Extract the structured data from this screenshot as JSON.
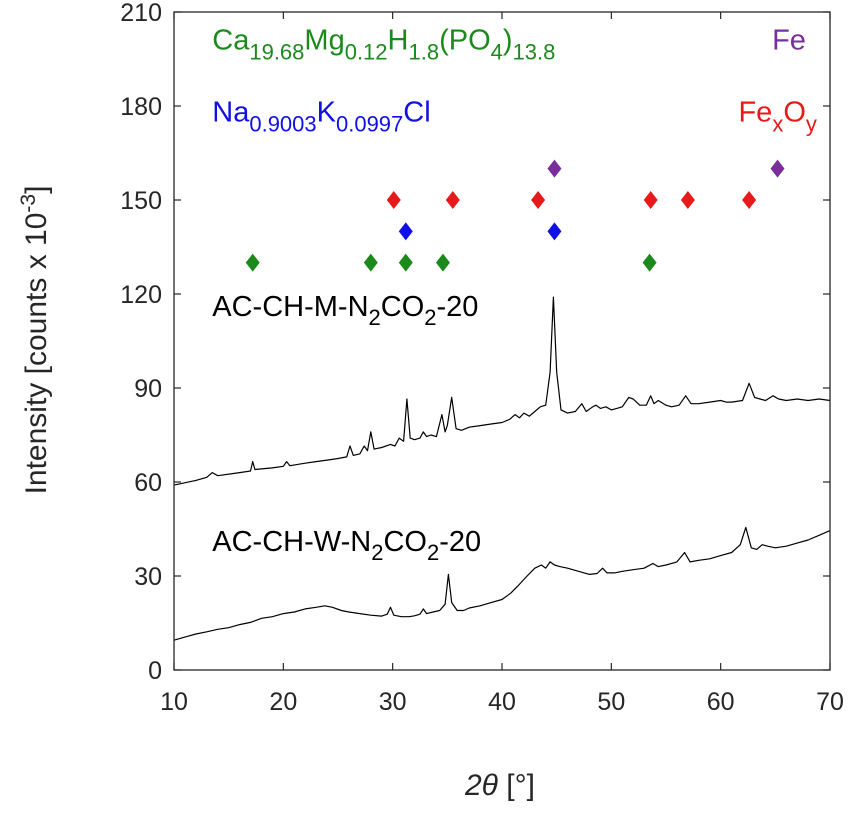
{
  "chart_data": {
    "type": "line",
    "title": "",
    "xlabel": "2θ [°]",
    "xlabel_parts": {
      "symbol": "2θ",
      "unit": " [°]"
    },
    "ylabel": "Intensity [counts x 10-3]",
    "ylabel_parts": {
      "main": "Intensity [counts x 10",
      "exp": "-3",
      "close": "]"
    },
    "xlim": [
      10,
      70
    ],
    "ylim": [
      0,
      210
    ],
    "xticks": [
      10,
      20,
      30,
      40,
      50,
      60,
      70
    ],
    "yticks": [
      0,
      30,
      60,
      90,
      120,
      150,
      180,
      210
    ],
    "grid": false,
    "series": [
      {
        "name": "AC-CH-M-N2CO2-20",
        "label_parts": [
          "AC-CH-M-N",
          "2",
          "CO",
          "2",
          "-20"
        ],
        "label_anchor": [
          13.5,
          113
        ],
        "color": "#000000",
        "points": [
          [
            10,
            59
          ],
          [
            12,
            60.5
          ],
          [
            13,
            61.5
          ],
          [
            13.5,
            63
          ],
          [
            14,
            62
          ],
          [
            16,
            63
          ],
          [
            17,
            63.5
          ],
          [
            17.2,
            66.5
          ],
          [
            17.4,
            64
          ],
          [
            19,
            64.5
          ],
          [
            20,
            65
          ],
          [
            20.3,
            66.5
          ],
          [
            20.6,
            65.2
          ],
          [
            22,
            66
          ],
          [
            23,
            66.5
          ],
          [
            24,
            67
          ],
          [
            25,
            67.5
          ],
          [
            25.8,
            68
          ],
          [
            26.1,
            71.5
          ],
          [
            26.4,
            68.5
          ],
          [
            27,
            69
          ],
          [
            27.4,
            71.5
          ],
          [
            27.7,
            70
          ],
          [
            28,
            76
          ],
          [
            28.3,
            70.5
          ],
          [
            29,
            71
          ],
          [
            29.8,
            72
          ],
          [
            30.2,
            71.5
          ],
          [
            30.6,
            74
          ],
          [
            31.0,
            73
          ],
          [
            31.3,
            86.5
          ],
          [
            31.6,
            74
          ],
          [
            32,
            73.5
          ],
          [
            32.5,
            74
          ],
          [
            32.8,
            76
          ],
          [
            33.1,
            74.5
          ],
          [
            33.5,
            75
          ],
          [
            34.0,
            74.5
          ],
          [
            34.5,
            81.5
          ],
          [
            34.8,
            76
          ],
          [
            35.0,
            78
          ],
          [
            35.4,
            87
          ],
          [
            35.8,
            77
          ],
          [
            36.3,
            76.5
          ],
          [
            37,
            77.5
          ],
          [
            38,
            78
          ],
          [
            39,
            78.5
          ],
          [
            40,
            79
          ],
          [
            40.7,
            80
          ],
          [
            41.2,
            81.5
          ],
          [
            41.6,
            80.5
          ],
          [
            42,
            82
          ],
          [
            42.5,
            81
          ],
          [
            43,
            82.5
          ],
          [
            43.5,
            84
          ],
          [
            44,
            84.5
          ],
          [
            44.4,
            95
          ],
          [
            44.7,
            119
          ],
          [
            45.0,
            95
          ],
          [
            45.4,
            83
          ],
          [
            46,
            82
          ],
          [
            46.7,
            82.5
          ],
          [
            47.3,
            85
          ],
          [
            47.7,
            82.5
          ],
          [
            48.3,
            84
          ],
          [
            48.6,
            84.5
          ],
          [
            49.0,
            83.5
          ],
          [
            49.5,
            84
          ],
          [
            50.0,
            83
          ],
          [
            50.5,
            83.5
          ],
          [
            51,
            84
          ],
          [
            51.6,
            87
          ],
          [
            52,
            86.5
          ],
          [
            52.6,
            84.5
          ],
          [
            53.2,
            84.5
          ],
          [
            53.6,
            87.5
          ],
          [
            53.9,
            85
          ],
          [
            54.3,
            86
          ],
          [
            55,
            84.5
          ],
          [
            55.5,
            84
          ],
          [
            56.2,
            84.5
          ],
          [
            56.8,
            87.5
          ],
          [
            57.3,
            85
          ],
          [
            58,
            85
          ],
          [
            59,
            85.5
          ],
          [
            60,
            86
          ],
          [
            60.5,
            85.5
          ],
          [
            61,
            85.5
          ],
          [
            62,
            86
          ],
          [
            62.6,
            91.5
          ],
          [
            63.1,
            87
          ],
          [
            63.6,
            86.5
          ],
          [
            64.1,
            86
          ],
          [
            64.8,
            87.5
          ],
          [
            65.3,
            86.5
          ],
          [
            66,
            86
          ],
          [
            67,
            86.5
          ],
          [
            68,
            86
          ],
          [
            69,
            86.5
          ],
          [
            70,
            86
          ]
        ]
      },
      {
        "name": "AC-CH-W-N2CO2-20",
        "label_parts": [
          "AC-CH-W-N",
          "2",
          "CO",
          "2",
          "-20"
        ],
        "label_anchor": [
          13.5,
          38
        ],
        "color": "#000000",
        "points": [
          [
            10,
            9.5
          ],
          [
            11,
            10.5
          ],
          [
            12,
            11.5
          ],
          [
            13,
            12.2
          ],
          [
            14,
            13
          ],
          [
            15,
            13.5
          ],
          [
            16,
            14.5
          ],
          [
            17,
            15.2
          ],
          [
            18,
            16.5
          ],
          [
            19,
            17
          ],
          [
            20,
            18
          ],
          [
            21,
            18.5
          ],
          [
            22,
            19.5
          ],
          [
            23,
            20
          ],
          [
            23.8,
            20.5
          ],
          [
            24.5,
            20
          ],
          [
            25.3,
            19
          ],
          [
            26,
            18.5
          ],
          [
            27,
            18
          ],
          [
            28,
            17.5
          ],
          [
            29,
            17.2
          ],
          [
            29.5,
            17.8
          ],
          [
            29.8,
            20
          ],
          [
            30.1,
            17.5
          ],
          [
            30.8,
            17
          ],
          [
            31.5,
            17
          ],
          [
            32,
            17.3
          ],
          [
            32.5,
            17.8
          ],
          [
            32.8,
            19.5
          ],
          [
            33.1,
            18
          ],
          [
            33.7,
            18.5
          ],
          [
            34.3,
            19
          ],
          [
            34.8,
            21
          ],
          [
            35.1,
            30.5
          ],
          [
            35.4,
            21.5
          ],
          [
            35.9,
            19
          ],
          [
            36.5,
            19
          ],
          [
            37,
            19.8
          ],
          [
            38,
            20.5
          ],
          [
            39,
            21.5
          ],
          [
            40,
            22.5
          ],
          [
            40.8,
            24.5
          ],
          [
            41.5,
            27
          ],
          [
            42.3,
            30
          ],
          [
            43,
            32.5
          ],
          [
            43.6,
            33.5
          ],
          [
            44.0,
            32.5
          ],
          [
            44.4,
            34.5
          ],
          [
            44.8,
            33.5
          ],
          [
            45.3,
            33
          ],
          [
            46,
            32.5
          ],
          [
            47,
            31.5
          ],
          [
            48,
            30.5
          ],
          [
            48.7,
            30.8
          ],
          [
            49.2,
            32.5
          ],
          [
            49.6,
            31
          ],
          [
            50.3,
            31
          ],
          [
            51,
            31.5
          ],
          [
            52,
            32
          ],
          [
            53,
            32.5
          ],
          [
            53.8,
            34
          ],
          [
            54.3,
            33
          ],
          [
            55,
            33.5
          ],
          [
            56,
            34.5
          ],
          [
            56.7,
            37.5
          ],
          [
            57.2,
            34.5
          ],
          [
            58,
            35
          ],
          [
            59,
            35.5
          ],
          [
            60,
            36.5
          ],
          [
            61,
            37.5
          ],
          [
            61.8,
            40
          ],
          [
            62.3,
            45.5
          ],
          [
            62.8,
            39
          ],
          [
            63.3,
            38.5
          ],
          [
            63.8,
            40
          ],
          [
            64.3,
            39.5
          ],
          [
            65,
            39
          ],
          [
            66,
            39.5
          ],
          [
            67,
            40.5
          ],
          [
            68,
            41.5
          ],
          [
            69,
            43
          ],
          [
            70,
            44.5
          ]
        ]
      }
    ],
    "phases": [
      {
        "name": "Ca19.68Mg0.12H1.8(PO4)13.8",
        "legend_parts": [
          {
            "text": "Ca",
            "sub": false
          },
          {
            "text": "19.68",
            "sub": true
          },
          {
            "text": "Mg",
            "sub": false
          },
          {
            "text": "0.12",
            "sub": true
          },
          {
            "text": "H",
            "sub": false
          },
          {
            "text": "1.8",
            "sub": true
          },
          {
            "text": "(PO",
            "sub": false
          },
          {
            "text": "4",
            "sub": true
          },
          {
            "text": ")",
            "sub": false
          },
          {
            "text": "13.8",
            "sub": true
          }
        ],
        "legend_anchor": [
          13.5,
          198
        ],
        "legend_align": "start",
        "color": "#1b8a1b",
        "marker": "diamond",
        "markers": [
          [
            17.2,
            130
          ],
          [
            28,
            130
          ],
          [
            31.2,
            130
          ],
          [
            34.6,
            130
          ],
          [
            53.5,
            130
          ]
        ]
      },
      {
        "name": "Na0.9003K0.0997Cl",
        "legend_parts": [
          {
            "text": "Na",
            "sub": false
          },
          {
            "text": "0.9003",
            "sub": true
          },
          {
            "text": "K",
            "sub": false
          },
          {
            "text": "0.0997",
            "sub": true
          },
          {
            "text": "Cl",
            "sub": false
          }
        ],
        "legend_anchor": [
          13.5,
          175
        ],
        "legend_align": "start",
        "color": "#1010e6",
        "marker": "diamond",
        "markers": [
          [
            31.2,
            140
          ],
          [
            44.8,
            140
          ]
        ]
      },
      {
        "name": "Fe",
        "legend_parts": [
          {
            "text": "Fe",
            "sub": false
          }
        ],
        "legend_anchor": [
          67.8,
          198
        ],
        "legend_align": "end",
        "color": "#7a2e9c",
        "marker": "diamond",
        "markers": [
          [
            44.8,
            160
          ],
          [
            65.2,
            160
          ]
        ]
      },
      {
        "name": "FexOy",
        "legend_parts": [
          {
            "text": "Fe",
            "sub": false
          },
          {
            "text": "x",
            "sub": true
          },
          {
            "text": "O",
            "sub": false
          },
          {
            "text": "y",
            "sub": true
          }
        ],
        "legend_anchor": [
          68.8,
          175
        ],
        "legend_align": "end",
        "color": "#e61a1a",
        "marker": "diamond",
        "markers": [
          [
            30.1,
            150
          ],
          [
            35.5,
            150
          ],
          [
            43.3,
            150
          ],
          [
            53.6,
            150
          ],
          [
            57,
            150
          ],
          [
            62.6,
            150
          ]
        ]
      }
    ]
  }
}
